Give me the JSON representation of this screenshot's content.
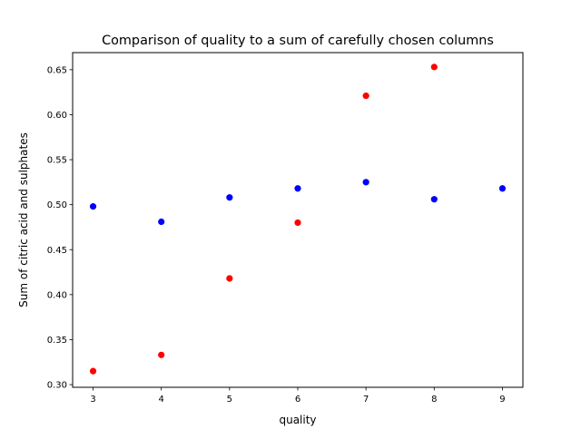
{
  "chart_data": {
    "type": "scatter",
    "title": "Comparison of quality to a sum of carefully chosen columns",
    "xlabel": "quality",
    "ylabel": "Sum of citric acid and sulphates",
    "xlim": [
      2.7,
      9.3
    ],
    "ylim": [
      0.297,
      0.669
    ],
    "xticks": [
      3,
      4,
      5,
      6,
      7,
      8,
      9
    ],
    "yticks": [
      0.3,
      0.35,
      0.4,
      0.45,
      0.5,
      0.55,
      0.6,
      0.65
    ],
    "grid": false,
    "series": [
      {
        "color": "#0000ff",
        "points": [
          {
            "x": 3,
            "y": 0.498
          },
          {
            "x": 4,
            "y": 0.481
          },
          {
            "x": 5,
            "y": 0.508
          },
          {
            "x": 6,
            "y": 0.518
          },
          {
            "x": 7,
            "y": 0.525
          },
          {
            "x": 8,
            "y": 0.506
          },
          {
            "x": 9,
            "y": 0.518
          }
        ]
      },
      {
        "color": "#ff0000",
        "points": [
          {
            "x": 3,
            "y": 0.315
          },
          {
            "x": 4,
            "y": 0.333
          },
          {
            "x": 5,
            "y": 0.418
          },
          {
            "x": 6,
            "y": 0.48
          },
          {
            "x": 7,
            "y": 0.621
          },
          {
            "x": 8,
            "y": 0.653
          }
        ]
      }
    ]
  }
}
